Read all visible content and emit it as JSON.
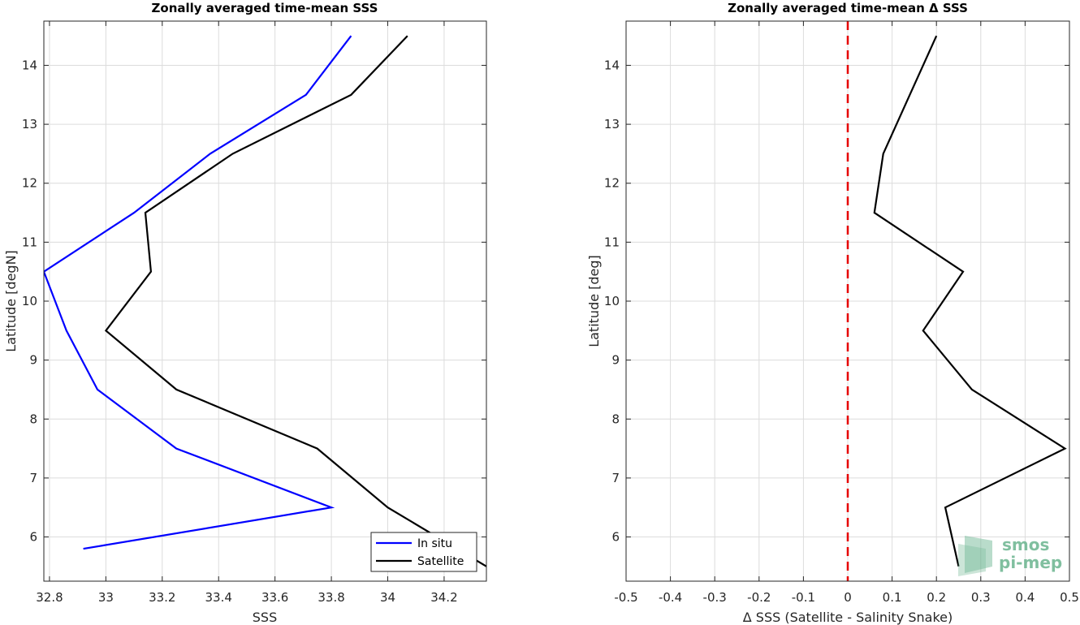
{
  "chart_data": [
    {
      "type": "line",
      "title": "Zonally averaged time-mean SSS",
      "xlabel": "SSS",
      "ylabel": "Latitude [degN]",
      "xlim": [
        32.78,
        34.35
      ],
      "ylim": [
        5.25,
        14.75
      ],
      "xticks": [
        32.8,
        33,
        33.2,
        33.4,
        33.6,
        33.8,
        34,
        34.2
      ],
      "xtick_labels": [
        "32.8",
        "33",
        "33.2",
        "33.4",
        "33.6",
        "33.8",
        "34",
        "34.2"
      ],
      "yticks": [
        6,
        7,
        8,
        9,
        10,
        11,
        12,
        13,
        14
      ],
      "ytick_labels": [
        "6",
        "7",
        "8",
        "9",
        "10",
        "11",
        "12",
        "13",
        "14"
      ],
      "grid": true,
      "legend": "bottom-right",
      "series": [
        {
          "name": "In situ",
          "color": "#0000ff",
          "points": [
            [
              32.92,
              5.8
            ],
            [
              33.8,
              6.5
            ],
            [
              33.25,
              7.5
            ],
            [
              32.97,
              8.5
            ],
            [
              32.86,
              9.5
            ],
            [
              32.78,
              10.5
            ],
            [
              33.1,
              11.5
            ],
            [
              33.37,
              12.5
            ],
            [
              33.71,
              13.5
            ],
            [
              33.87,
              14.5
            ]
          ]
        },
        {
          "name": "Satellite",
          "color": "#000000",
          "points": [
            [
              34.35,
              5.5
            ],
            [
              34.0,
              6.5
            ],
            [
              33.75,
              7.5
            ],
            [
              33.25,
              8.5
            ],
            [
              33.0,
              9.5
            ],
            [
              33.16,
              10.5
            ],
            [
              33.14,
              11.5
            ],
            [
              33.45,
              12.5
            ],
            [
              33.87,
              13.5
            ],
            [
              34.07,
              14.5
            ]
          ]
        }
      ]
    },
    {
      "type": "line",
      "title": "Zonally averaged time-mean Δ SSS",
      "xlabel": "Δ SSS (Satellite - Salinity Snake)",
      "ylabel": "Latitude [deg]",
      "xlim": [
        -0.5,
        0.5
      ],
      "ylim": [
        5.25,
        14.75
      ],
      "xticks": [
        -0.5,
        -0.4,
        -0.3,
        -0.2,
        -0.1,
        0,
        0.1,
        0.2,
        0.3,
        0.4,
        0.5
      ],
      "xtick_labels": [
        "-0.5",
        "-0.4",
        "-0.3",
        "-0.2",
        "-0.1",
        "0",
        "0.1",
        "0.2",
        "0.3",
        "0.4",
        "0.5"
      ],
      "yticks": [
        6,
        7,
        8,
        9,
        10,
        11,
        12,
        13,
        14
      ],
      "ytick_labels": [
        "6",
        "7",
        "8",
        "9",
        "10",
        "11",
        "12",
        "13",
        "14"
      ],
      "grid": true,
      "reference_line": {
        "x": 0,
        "color": "#e60000",
        "style": "dashed"
      },
      "series": [
        {
          "color": "#000000",
          "points": [
            [
              0.25,
              5.5
            ],
            [
              0.22,
              6.5
            ],
            [
              0.49,
              7.5
            ],
            [
              0.28,
              8.5
            ],
            [
              0.17,
              9.5
            ],
            [
              0.26,
              10.5
            ],
            [
              0.06,
              11.5
            ],
            [
              0.08,
              12.5
            ],
            [
              0.14,
              13.5
            ],
            [
              0.2,
              14.5
            ]
          ]
        }
      ]
    }
  ],
  "watermark": {
    "line1": "smos",
    "line2": "pi-mep",
    "color": "#6ab58f"
  }
}
